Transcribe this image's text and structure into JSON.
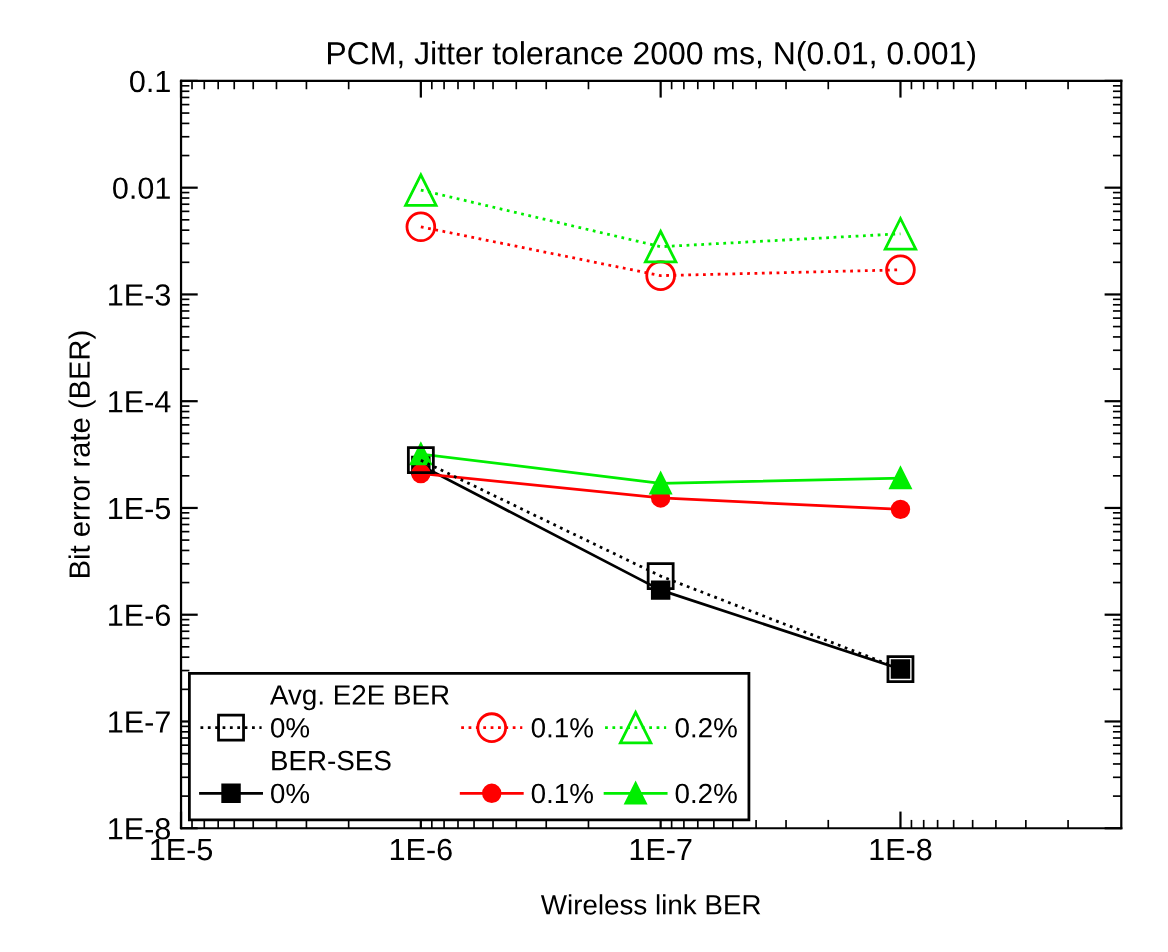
{
  "chart_data": {
    "type": "line",
    "title": "PCM, Jitter tolerance 2000 ms, N(0.01, 0.001)",
    "xlabel": "Wireless link BER",
    "ylabel": "Bit error rate (BER)",
    "log": "xy",
    "grid": false,
    "legend": "bottom left",
    "x": [
      1e-06,
      1e-07,
      1e-08
    ],
    "xlim": [
      1e-05,
      1.2e-09
    ],
    "xticks": [
      {
        "value": 1e-05,
        "label": "1E-5"
      },
      {
        "value": 1e-06,
        "label": "1E-6"
      },
      {
        "value": 1e-07,
        "label": "1E-7"
      },
      {
        "value": 1e-08,
        "label": "1E-8"
      }
    ],
    "ylim": [
      1e-08,
      0.1
    ],
    "yticks": [
      {
        "value": 1e-08,
        "label": "1E-8"
      },
      {
        "value": 1e-07,
        "label": "1E-7"
      },
      {
        "value": 1e-06,
        "label": "1E-6"
      },
      {
        "value": 1e-05,
        "label": "1E-5"
      },
      {
        "value": 0.0001,
        "label": "1E-4"
      },
      {
        "value": 0.001,
        "label": "1E-3"
      },
      {
        "value": 0.01,
        "label": "0.01"
      },
      {
        "value": 0.1,
        "label": "0.1"
      }
    ],
    "annotations": [
      "Avg. E2E BER",
      "BER-SES"
    ],
    "series": [
      {
        "name": "0%",
        "color": "#000000",
        "marker": "square",
        "line_style": "dotted",
        "values": [
          2.8e-05,
          2.3e-06,
          3.1e-07
        ]
      },
      {
        "name": "0.1%",
        "color": "#ff0000",
        "marker": "circle",
        "line_style": "dotted",
        "values": [
          0.0043,
          0.0015,
          0.0017
        ]
      },
      {
        "name": "0.2%",
        "color": "#00ee00",
        "marker": "triangle",
        "line_style": "dotted",
        "values": [
          0.0095,
          0.0028,
          0.0037
        ]
      },
      {
        "name": "0%",
        "color": "#000000",
        "marker": "square",
        "line_style": "solid",
        "values": [
          2.5e-05,
          1.7e-06,
          3.1e-07
        ]
      },
      {
        "name": "0.1%",
        "color": "#ff0000",
        "marker": "circle",
        "line_style": "solid",
        "values": [
          2.1e-05,
          1.24e-05,
          9.7e-06
        ]
      },
      {
        "name": "0.2%",
        "color": "#00ee00",
        "marker": "triangle",
        "line_style": "solid",
        "values": [
          3.2e-05,
          1.7e-05,
          1.9e-05
        ]
      }
    ]
  }
}
